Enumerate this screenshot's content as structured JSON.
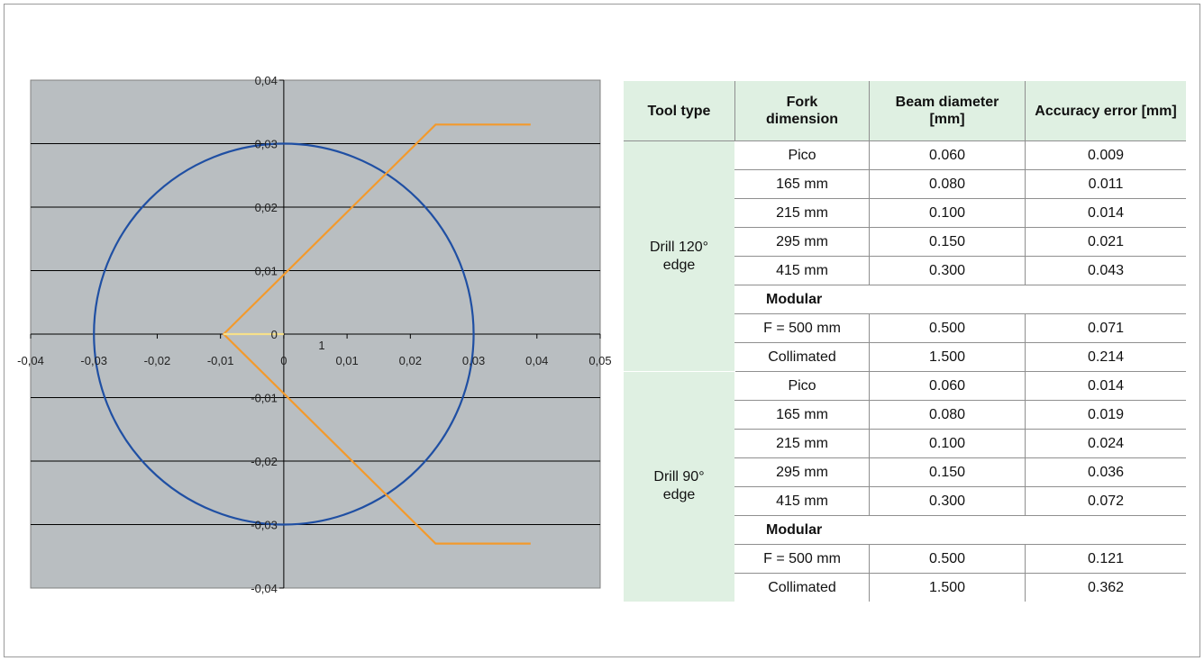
{
  "chart_data": {
    "type": "line",
    "title": "",
    "xlabel": "",
    "ylabel": "",
    "xlim": [
      -0.04,
      0.05
    ],
    "ylim": [
      -0.04,
      0.04
    ],
    "x_ticks": [
      "-0,04",
      "-0,03",
      "-0,02",
      "-0,01",
      "0",
      "0,01",
      "0,02",
      "0,03",
      "0,04",
      "0,05"
    ],
    "y_ticks": [
      "0,04",
      "0,03",
      "0,02",
      "0,01",
      "0",
      "-0,01",
      "-0,02",
      "-0,03",
      "-0,04"
    ],
    "grid": "horizontal",
    "legend": "none",
    "annotations": [
      {
        "text": "1",
        "x": 0.006,
        "y": -0.001
      }
    ],
    "series": [
      {
        "kind": "circle",
        "color": "#1f4fa3",
        "center": [
          0,
          0
        ],
        "radius": 0.03
      },
      {
        "kind": "polyline",
        "color": "#f39a2c",
        "points": [
          [
            0.039,
            0.033
          ],
          [
            0.024,
            0.033
          ],
          [
            -0.0095,
            0
          ],
          [
            0.024,
            -0.033
          ],
          [
            0.039,
            -0.033
          ]
        ]
      },
      {
        "kind": "polyline",
        "color": "#f6e08a",
        "points": [
          [
            -0.0095,
            0
          ],
          [
            0,
            0
          ]
        ]
      }
    ],
    "plot_background": "#b9bec1"
  },
  "table": {
    "headers": [
      "Tool type",
      "Fork dimension",
      "Beam diameter [mm]",
      "Accuracy error [mm]"
    ],
    "groups": [
      {
        "tool": "Drill 120° edge",
        "rows": [
          {
            "fork": "Pico",
            "beam": "0.060",
            "error": "0.009"
          },
          {
            "fork": "165 mm",
            "beam": "0.080",
            "error": "0.011"
          },
          {
            "fork": "215 mm",
            "beam": "0.100",
            "error": "0.014"
          },
          {
            "fork": "295 mm",
            "beam": "0.150",
            "error": "0.021"
          },
          {
            "fork": "415 mm",
            "beam": "0.300",
            "error": "0.043"
          },
          {
            "modular": "Modular"
          },
          {
            "fork": "F = 500 mm",
            "beam": "0.500",
            "error": "0.071"
          },
          {
            "fork": "Collimated",
            "beam": "1.500",
            "error": "0.214"
          }
        ]
      },
      {
        "tool": "Drill 90° edge",
        "rows": [
          {
            "fork": "Pico",
            "beam": "0.060",
            "error": "0.014"
          },
          {
            "fork": "165 mm",
            "beam": "0.080",
            "error": "0.019"
          },
          {
            "fork": "215 mm",
            "beam": "0.100",
            "error": "0.024"
          },
          {
            "fork": "295 mm",
            "beam": "0.150",
            "error": "0.036"
          },
          {
            "fork": "415 mm",
            "beam": "0.300",
            "error": "0.072"
          },
          {
            "modular": "Modular"
          },
          {
            "fork": "F = 500 mm",
            "beam": "0.500",
            "error": "0.121"
          },
          {
            "fork": "Collimated",
            "beam": "1.500",
            "error": "0.362"
          }
        ]
      }
    ]
  }
}
